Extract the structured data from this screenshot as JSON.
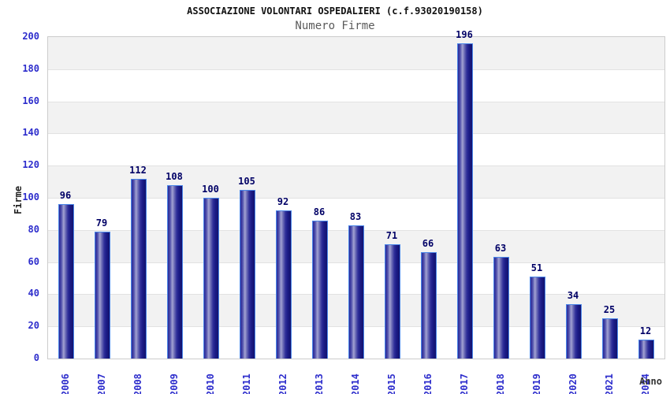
{
  "chart_data": {
    "type": "bar",
    "title": "ASSOCIAZIONE VOLONTARI OSPEDALIERI (c.f.93020190158)",
    "subtitle": "Numero Firme",
    "xlabel": "Anno",
    "ylabel": "Firme",
    "categories": [
      "2006",
      "2007",
      "2008",
      "2009",
      "2010",
      "2011",
      "2012",
      "2013",
      "2014",
      "2015",
      "2016",
      "2017",
      "2018",
      "2019",
      "2020",
      "2021",
      "2024"
    ],
    "values": [
      96,
      79,
      112,
      108,
      100,
      105,
      92,
      86,
      83,
      71,
      66,
      196,
      63,
      51,
      34,
      25,
      12
    ],
    "ylim": [
      0,
      200
    ],
    "tick_step": 20,
    "yticks": [
      0,
      20,
      40,
      60,
      80,
      100,
      120,
      140,
      160,
      180,
      200
    ],
    "legend": "none",
    "grid": "horizontal-bands-alternating",
    "colors": {
      "band_gray": "#f2f2f2",
      "band_white": "#ffffff",
      "gridline": "#e2e2e2",
      "plot_border": "#cccccc",
      "tick_label": "#2d2dcc",
      "value_label": "#000066",
      "bar_border": "#4a86e8",
      "bar_gradient": [
        "#2a2a9a 0%",
        "#4a4aa8 14%",
        "#a2a2d2 32%",
        "#7070b8 44%",
        "#30309a 62%",
        "#1b1b86 78%",
        "#12126e 100%"
      ]
    }
  }
}
